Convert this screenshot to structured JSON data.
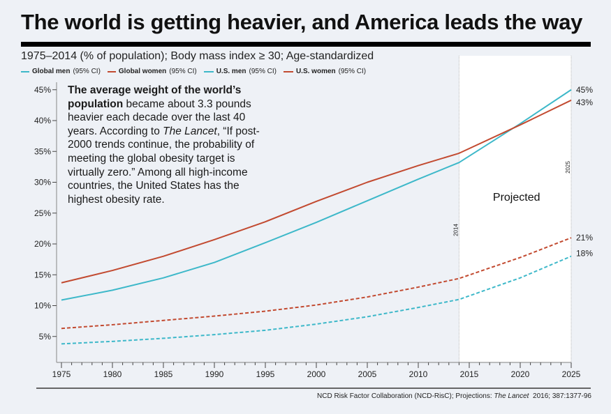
{
  "title": "The world is getting heavier, and America leads the way",
  "subtitle": "1975–2014 (% of population); Body mass index ≥ 30; Age-standardized",
  "legend": [
    {
      "name": "Global men",
      "suffix": "(95% CI)",
      "color": "#3db8c9",
      "style": "dashed"
    },
    {
      "name": "Global women",
      "suffix": "(95% CI)",
      "color": "#c24a30",
      "style": "dashed"
    },
    {
      "name": "U.S. men",
      "suffix": "(95% CI)",
      "color": "#3db8c9",
      "style": "solid"
    },
    {
      "name": "U.S. women",
      "suffix": "(95% CI)",
      "color": "#c24a30",
      "style": "solid"
    }
  ],
  "annotation": {
    "bold": "The average weight of the world’s population",
    "text1": " became about 3.3 pounds heavier each decade over the last 40 years. According to ",
    "italic": "The Lancet",
    "text2": ", “If post-2000 trends continue, the probability of meeting the global obesity target is virtually zero.” Among all high-income countries, the United States has the highest obesity rate."
  },
  "source": {
    "prefix": "NCD Risk Factor Collaboration (NCD-RisC); Projections: ",
    "italic": "The Lancet",
    "suffix": "  2016; 387:1377-96"
  },
  "chart_data": {
    "type": "line",
    "title": "The world is getting heavier, and America leads the way",
    "subtitle": "1975–2014 (% of population); Body mass index ≥ 30; Age-standardized",
    "xlabel": "",
    "ylabel": "",
    "xlim": [
      1975,
      2025
    ],
    "ylim": [
      0,
      47
    ],
    "xticks": [
      1975,
      1980,
      1985,
      1990,
      1995,
      2000,
      2005,
      2010,
      2015,
      2020,
      2025
    ],
    "yticks": [
      5,
      10,
      15,
      20,
      25,
      30,
      35,
      40,
      45
    ],
    "ytick_suffix": "%",
    "grid": false,
    "legend_position": "top-left",
    "projection": {
      "label": "Projected",
      "start": 2014,
      "end": 2025,
      "start_label": "2014",
      "end_label": "2025"
    },
    "x": [
      1975,
      1980,
      1985,
      1990,
      1995,
      2000,
      2005,
      2010,
      2014,
      2020,
      2025
    ],
    "series": [
      {
        "name": "Global men",
        "style": "dashed",
        "color": "#3db8c9",
        "values": [
          3.8,
          4.2,
          4.7,
          5.3,
          6.0,
          7.0,
          8.2,
          9.7,
          11.0,
          14.5,
          18.0
        ],
        "end_label": "18%"
      },
      {
        "name": "Global women",
        "style": "dashed",
        "color": "#c24a30",
        "values": [
          6.3,
          6.9,
          7.6,
          8.3,
          9.1,
          10.1,
          11.4,
          13.0,
          14.4,
          17.8,
          21.0
        ],
        "end_label": "21%"
      },
      {
        "name": "U.S. men",
        "style": "solid",
        "color": "#3db8c9",
        "values": [
          10.9,
          12.5,
          14.5,
          17.0,
          20.2,
          23.5,
          27.0,
          30.5,
          33.2,
          39.5,
          45.0
        ],
        "end_label": "45%"
      },
      {
        "name": "U.S. women",
        "style": "solid",
        "color": "#c24a30",
        "values": [
          13.7,
          15.7,
          18.0,
          20.7,
          23.6,
          26.9,
          30.0,
          32.7,
          34.7,
          39.3,
          43.3
        ],
        "end_label": "43%"
      }
    ]
  }
}
